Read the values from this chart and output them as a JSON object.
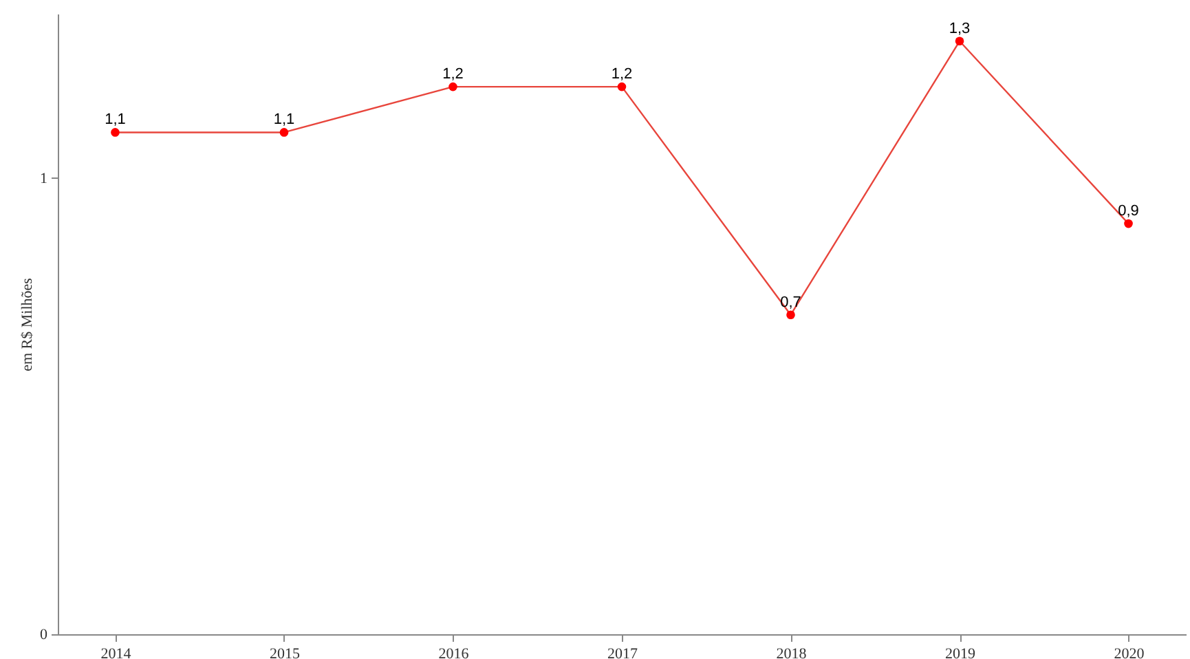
{
  "chart_data": {
    "type": "line",
    "ylabel": "em R$ Milhões",
    "categories": [
      "2014",
      "2015",
      "2016",
      "2017",
      "2018",
      "2019",
      "2020"
    ],
    "series": [
      {
        "color": "#e8453c",
        "values": [
          1.1,
          1.1,
          1.2,
          1.2,
          0.7,
          1.3,
          0.9
        ],
        "value_labels": [
          "1,1",
          "1,1",
          "1,2",
          "1,2",
          "0,7",
          "1,3",
          "0,9"
        ]
      }
    ],
    "ylim": [
      0,
      1.36
    ],
    "yticks": [
      {
        "value": 0,
        "label": "0"
      },
      {
        "value": 1,
        "label": "1"
      }
    ],
    "marker": "circle",
    "grid": false
  }
}
